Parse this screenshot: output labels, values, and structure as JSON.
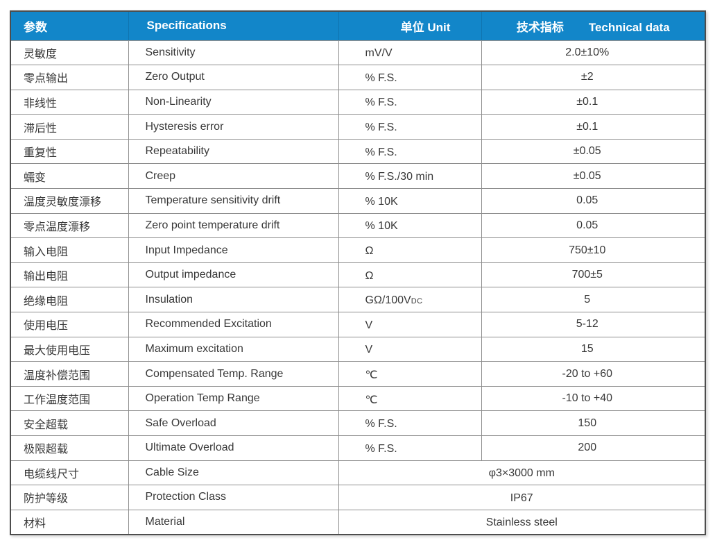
{
  "table": {
    "header": {
      "col1": "参数",
      "col2": "Specifications",
      "col3": "单位 Unit",
      "col4_cn": "技术指标",
      "col4_en": "Technical data"
    },
    "rows": [
      {
        "param": "灵敏度",
        "spec": "Sensitivity",
        "unit": "mV/V",
        "value": "2.0±10%"
      },
      {
        "param": "零点输出",
        "spec": "Zero Output",
        "unit": "% F.S.",
        "value": "±2"
      },
      {
        "param": "非线性",
        "spec": "Non-Linearity",
        "unit": "% F.S.",
        "value": "±0.1"
      },
      {
        "param": "滞后性",
        "spec": "Hysteresis error",
        "unit": "% F.S.",
        "value": "±0.1"
      },
      {
        "param": "重复性",
        "spec": "Repeatability",
        "unit": "% F.S.",
        "value": "±0.05"
      },
      {
        "param": "蠕变",
        "spec": "Creep",
        "unit": "% F.S./30 min",
        "value": "±0.05"
      },
      {
        "param": "温度灵敏度漂移",
        "spec": "Temperature sensitivity drift",
        "unit": "% 10K",
        "value": "0.05"
      },
      {
        "param": "零点温度漂移",
        "spec": "Zero point temperature drift",
        "unit": "% 10K",
        "value": "0.05"
      },
      {
        "param": "输入电阻",
        "spec": "Input Impedance",
        "unit": "Ω",
        "value": "750±10"
      },
      {
        "param": "输出电阻",
        "spec": "Output impedance",
        "unit": "Ω",
        "value": "700±5"
      },
      {
        "param": "绝缘电阻",
        "spec": "Insulation",
        "unit": "GΩ/100V",
        "unit_sub": "DC",
        "value": "5"
      },
      {
        "param": "使用电压",
        "spec": "Recommended Excitation",
        "unit": "V",
        "value": "5-12"
      },
      {
        "param": "最大使用电压",
        "spec": "Maximum excitation",
        "unit": "V",
        "value": "15"
      },
      {
        "param": "温度补偿范围",
        "spec": "Compensated Temp. Range",
        "unit": "℃",
        "value": "-20 to +60"
      },
      {
        "param": "工作温度范围",
        "spec": "Operation Temp Range",
        "unit": "℃",
        "value": "-10 to +40"
      },
      {
        "param": "安全超载",
        "spec": "Safe Overload",
        "unit": "% F.S.",
        "value": "150"
      },
      {
        "param": "极限超载",
        "spec": "Ultimate Overload",
        "unit": "% F.S.",
        "value": "200"
      },
      {
        "param": "电缆线尺寸",
        "spec": "Cable Size",
        "value": "φ3×3000 mm",
        "merged": true
      },
      {
        "param": "防护等级",
        "spec": "Protection Class",
        "value": "IP67",
        "merged": true
      },
      {
        "param": "材料",
        "spec": "Material",
        "value": "Stainless steel",
        "merged": true
      }
    ],
    "colors": {
      "header_bg": "#1286C9",
      "header_text": "#FFFFFF",
      "body_text": "#383838",
      "border_inner": "#8E8E8E",
      "border_outer": "#4D4D4D"
    }
  }
}
